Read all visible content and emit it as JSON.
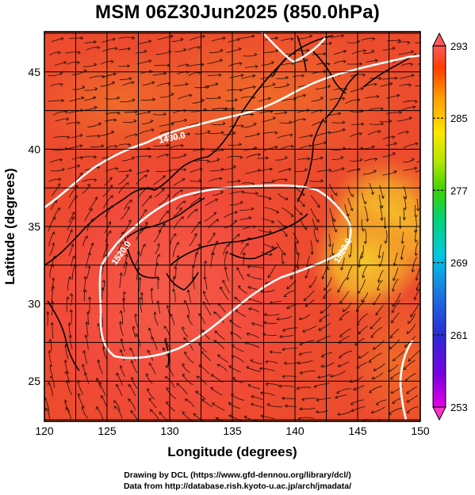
{
  "title": "MSM 06Z30Jun2025 (850.0hPa)",
  "map": {
    "xlabel": "Longitude (degrees)",
    "ylabel": "Latitude  (degrees)",
    "x_ticks": [
      "120",
      "125",
      "130",
      "135",
      "140",
      "145",
      "150"
    ],
    "y_ticks": [
      "45",
      "40",
      "35",
      "30",
      "25"
    ],
    "lon_range": [
      120,
      150
    ],
    "lat_range": [
      22.4,
      47.6
    ],
    "contour_labels": [
      "1480.0",
      "1520.0",
      "1520.0"
    ],
    "field": "850hPa temperature with streamlines, geopotential height contours (white)"
  },
  "colorbar": {
    "ticks": [
      "293",
      "285",
      "277",
      "269",
      "261",
      "253"
    ],
    "range": [
      253,
      293
    ],
    "colors": [
      "#e600e6",
      "#7a00e0",
      "#2a2ad6",
      "#1a7ae0",
      "#00c8e0",
      "#00d27a",
      "#3cd200",
      "#b4e600",
      "#ffe600",
      "#ff9a00",
      "#ff3c00",
      "#ff5a5a"
    ]
  },
  "credits": {
    "line1": "Drawing by DCL (https://www.gfd-dennou.org/library/dcl/)",
    "line2": "Data from http://database.rish.kyoto-u.ac.jp/arch/jmadata/"
  }
}
